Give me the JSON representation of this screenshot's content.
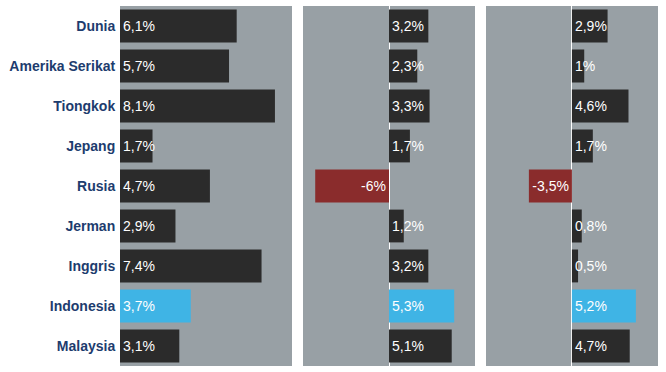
{
  "chart_data": [
    {
      "type": "bar",
      "orientation": "horizontal",
      "data_labels": true,
      "tick_labels": "y",
      "categories": [
        "Dunia",
        "Amerika Serikat",
        "Tiongkok",
        "Jepang",
        "Rusia",
        "Jerman",
        "Inggris",
        "Indonesia",
        "Malaysia"
      ],
      "values": [
        6.1,
        5.7,
        8.1,
        1.7,
        4.7,
        2.9,
        7.4,
        3.7,
        3.1
      ],
      "value_labels": [
        "6,1%",
        "5,7%",
        "8,1%",
        "1,7%",
        "4,7%",
        "2,9%",
        "7,4%",
        "3,7%",
        "3,1%"
      ],
      "colors": [
        "#2b2b2b",
        "#2b2b2b",
        "#2b2b2b",
        "#2b2b2b",
        "#2b2b2b",
        "#2b2b2b",
        "#2b2b2b",
        "#3fb4e5",
        "#2b2b2b"
      ],
      "xlim": [
        0,
        9
      ]
    },
    {
      "type": "bar",
      "orientation": "horizontal",
      "data_labels": true,
      "tick_labels": false,
      "categories": [
        "Dunia",
        "Amerika Serikat",
        "Tiongkok",
        "Jepang",
        "Rusia",
        "Jerman",
        "Inggris",
        "Indonesia",
        "Malaysia"
      ],
      "values": [
        3.2,
        2.3,
        3.3,
        1.7,
        -6,
        1.2,
        3.2,
        5.3,
        5.1
      ],
      "value_labels": [
        "3,2%",
        "2,3%",
        "3,3%",
        "1,7%",
        "-6%",
        "1,2%",
        "3,2%",
        "5,3%",
        "5,1%"
      ],
      "colors": [
        "#2b2b2b",
        "#2b2b2b",
        "#2b2b2b",
        "#2b2b2b",
        "#8a2c2c",
        "#2b2b2b",
        "#2b2b2b",
        "#3fb4e5",
        "#2b2b2b"
      ],
      "xlim": [
        -7,
        7
      ]
    },
    {
      "type": "bar",
      "orientation": "horizontal",
      "data_labels": true,
      "tick_labels": false,
      "categories": [
        "Dunia",
        "Amerika Serikat",
        "Tiongkok",
        "Jepang",
        "Rusia",
        "Jerman",
        "Inggris",
        "Indonesia",
        "Malaysia"
      ],
      "values": [
        2.9,
        1,
        4.6,
        1.7,
        -3.5,
        0.8,
        0.5,
        5.2,
        4.7
      ],
      "value_labels": [
        "2,9%",
        "1%",
        "4,6%",
        "1,7%",
        "-3,5%",
        "0,8%",
        "0,5%",
        "5,2%",
        "4,7%"
      ],
      "colors": [
        "#2b2b2b",
        "#2b2b2b",
        "#2b2b2b",
        "#2b2b2b",
        "#8a2c2c",
        "#2b2b2b",
        "#2b2b2b",
        "#3fb4e5",
        "#2b2b2b"
      ],
      "xlim": [
        -7,
        7
      ]
    }
  ]
}
